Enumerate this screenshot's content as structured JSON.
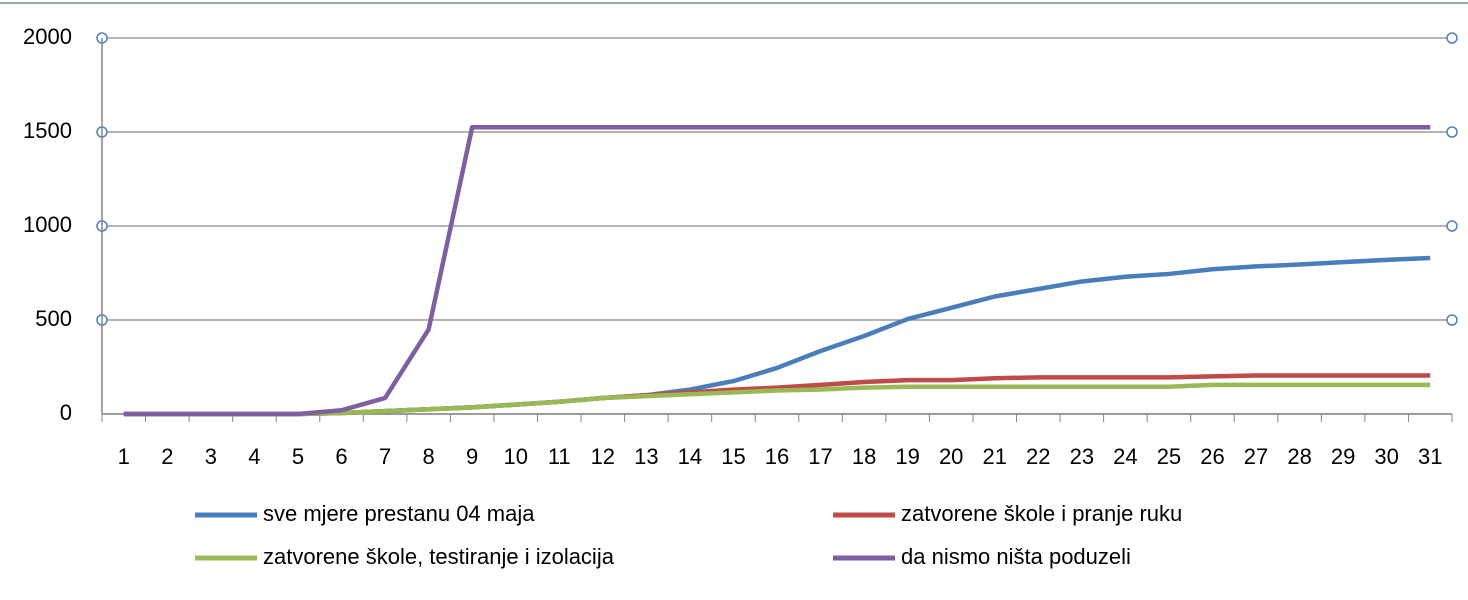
{
  "chart_data": {
    "type": "line",
    "categories": [
      "1",
      "2",
      "3",
      "4",
      "5",
      "6",
      "7",
      "8",
      "9",
      "10",
      "11",
      "12",
      "13",
      "14",
      "15",
      "16",
      "17",
      "18",
      "19",
      "20",
      "21",
      "22",
      "23",
      "24",
      "25",
      "26",
      "27",
      "28",
      "29",
      "30",
      "31"
    ],
    "series": [
      {
        "name": "sve mjere prestanu 04 maja",
        "color": "#4a7ebb",
        "values": [
          0,
          0,
          0,
          0,
          0,
          5,
          15,
          25,
          35,
          50,
          65,
          85,
          100,
          130,
          175,
          245,
          335,
          415,
          505,
          565,
          625,
          665,
          705,
          730,
          745,
          770,
          785,
          795,
          808,
          820,
          830
        ]
      },
      {
        "name": "zatvorene škole i pranje ruku",
        "color": "#be4b48",
        "values": [
          0,
          0,
          0,
          0,
          0,
          5,
          15,
          25,
          35,
          50,
          65,
          85,
          100,
          115,
          130,
          140,
          155,
          170,
          180,
          180,
          190,
          195,
          195,
          195,
          195,
          200,
          205,
          205,
          205,
          205,
          205
        ]
      },
      {
        "name": "zatvorene škole, testiranje i izolacija",
        "color": "#98b954",
        "values": [
          0,
          0,
          0,
          0,
          0,
          5,
          15,
          25,
          35,
          50,
          65,
          85,
          95,
          105,
          115,
          125,
          130,
          140,
          145,
          145,
          145,
          145,
          145,
          145,
          145,
          155,
          155,
          155,
          155,
          155,
          155
        ]
      },
      {
        "name": "da nismo ništa poduzeli",
        "color": "#7d60a0",
        "values": [
          0,
          0,
          0,
          0,
          0,
          20,
          85,
          450,
          1525,
          1525,
          1525,
          1525,
          1525,
          1525,
          1525,
          1525,
          1525,
          1525,
          1525,
          1525,
          1525,
          1525,
          1525,
          1525,
          1525,
          1525,
          1525,
          1525,
          1525,
          1525,
          1525
        ]
      }
    ],
    "ylim": [
      0,
      2000
    ],
    "yticks": [
      0,
      500,
      1000,
      1500,
      2000
    ],
    "grid": true
  }
}
